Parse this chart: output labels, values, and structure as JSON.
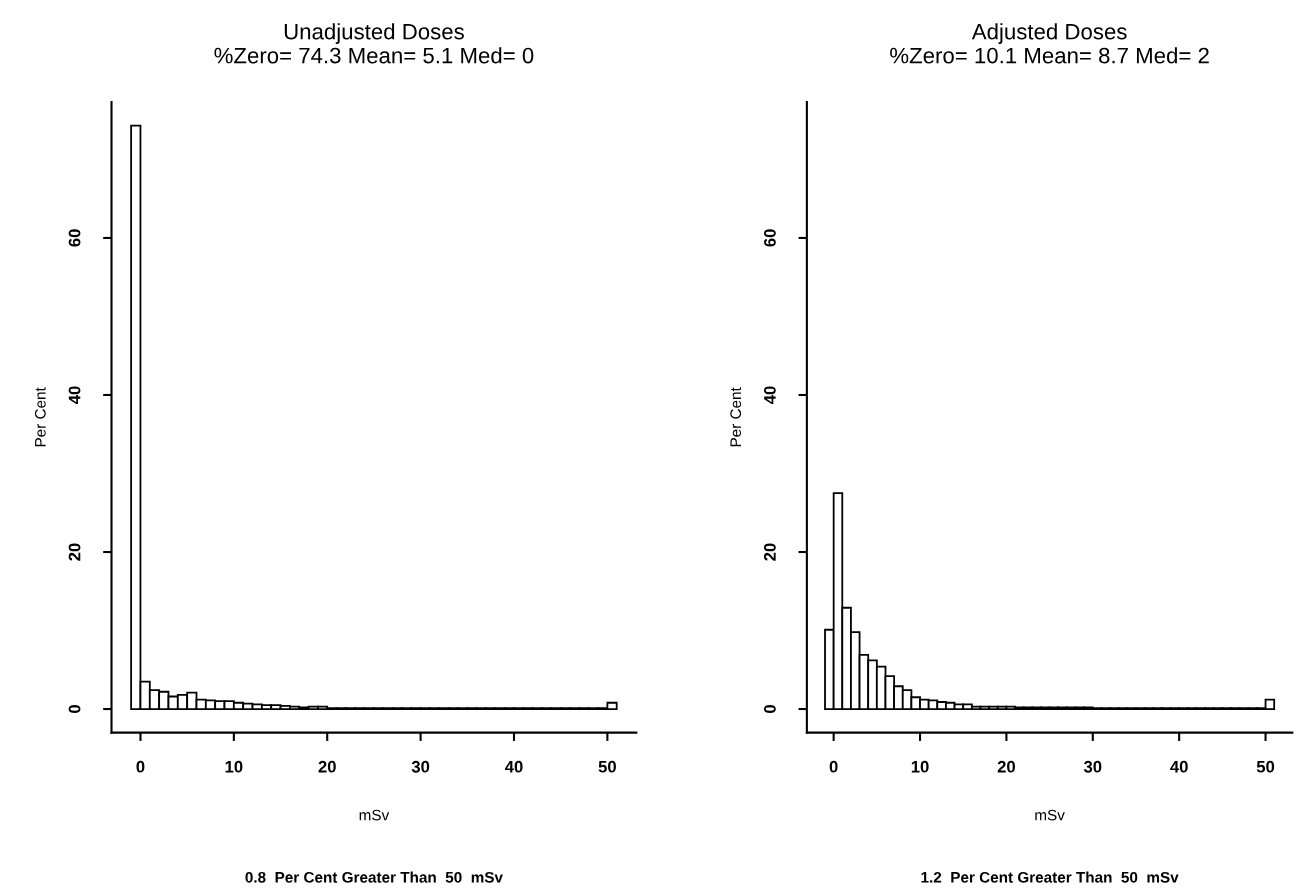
{
  "chart_data": [
    {
      "type": "histogram",
      "title": "Unadjusted Doses",
      "subtitle": "%Zero= 74.3 Mean= 5.1 Med= 0",
      "xlabel": "mSv",
      "ylabel": "Per Cent",
      "annotations": [
        "0.8  Per Cent Greater Than  50  mSv"
      ],
      "color": "#ffffff",
      "bins": [
        -1,
        0,
        1,
        2,
        3,
        4,
        5,
        6,
        7,
        8,
        9,
        10,
        11,
        12,
        13,
        14,
        15,
        16,
        17,
        18,
        19,
        20,
        21,
        22,
        23,
        24,
        25,
        26,
        27,
        28,
        29,
        30,
        31,
        32,
        33,
        34,
        35,
        36,
        37,
        38,
        39,
        40,
        41,
        42,
        43,
        44,
        45,
        46,
        47,
        48,
        49,
        50,
        51
      ],
      "values": [
        74.3,
        3.5,
        2.4,
        2.2,
        1.6,
        1.8,
        2.1,
        1.2,
        1.1,
        1.0,
        1.0,
        0.8,
        0.7,
        0.6,
        0.5,
        0.5,
        0.4,
        0.3,
        0.2,
        0.3,
        0.3,
        0.1,
        0.1,
        0.1,
        0.1,
        0.1,
        0.1,
        0.1,
        0.1,
        0.1,
        0.1,
        0.1,
        0.1,
        0.1,
        0.1,
        0.1,
        0.1,
        0.1,
        0.1,
        0.1,
        0.1,
        0.1,
        0.1,
        0.1,
        0.1,
        0.1,
        0.1,
        0.1,
        0.1,
        0.1,
        0.1,
        0.8
      ],
      "xlim": [
        -3.1,
        53.1
      ],
      "ylim": [
        -3,
        77.3
      ],
      "xticks": [
        0,
        10,
        20,
        30,
        40,
        50
      ],
      "yticks": [
        0,
        20,
        40,
        60
      ]
    },
    {
      "type": "histogram",
      "title": "Adjusted Doses",
      "subtitle": "%Zero= 10.1 Mean= 8.7 Med= 2",
      "xlabel": "mSv",
      "ylabel": "Per Cent",
      "annotations": [
        "1.2  Per Cent Greater Than  50  mSv"
      ],
      "color": "#ffffff",
      "bins": [
        -1,
        0,
        1,
        2,
        3,
        4,
        5,
        6,
        7,
        8,
        9,
        10,
        11,
        12,
        13,
        14,
        15,
        16,
        17,
        18,
        19,
        20,
        21,
        22,
        23,
        24,
        25,
        26,
        27,
        28,
        29,
        30,
        31,
        32,
        33,
        34,
        35,
        36,
        37,
        38,
        39,
        40,
        41,
        42,
        43,
        44,
        45,
        46,
        47,
        48,
        49,
        50,
        51
      ],
      "values": [
        10.1,
        27.5,
        12.9,
        9.8,
        6.9,
        6.2,
        5.4,
        4.2,
        2.9,
        2.4,
        1.5,
        1.2,
        1.1,
        0.9,
        0.8,
        0.6,
        0.6,
        0.3,
        0.3,
        0.3,
        0.3,
        0.3,
        0.2,
        0.2,
        0.2,
        0.2,
        0.2,
        0.2,
        0.2,
        0.2,
        0.2,
        0.1,
        0.1,
        0.1,
        0.1,
        0.1,
        0.1,
        0.1,
        0.1,
        0.1,
        0.1,
        0.1,
        0.1,
        0.1,
        0.1,
        0.1,
        0.1,
        0.1,
        0.1,
        0.1,
        0.1,
        1.2
      ],
      "xlim": [
        -3.1,
        53.1
      ],
      "ylim": [
        -3,
        77.3
      ],
      "xticks": [
        0,
        10,
        20,
        30,
        40,
        50
      ],
      "yticks": [
        0,
        20,
        40,
        60
      ]
    }
  ]
}
